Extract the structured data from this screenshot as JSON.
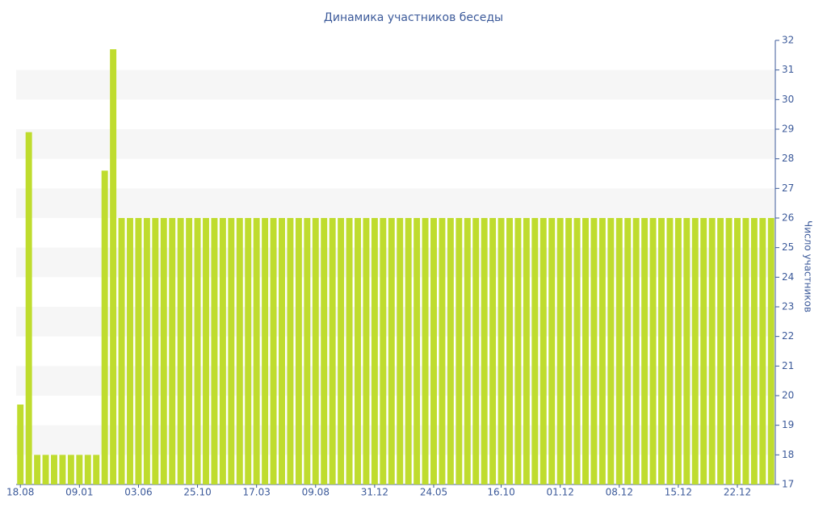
{
  "chart_data": {
    "type": "bar",
    "title": "Динамика участников беседы",
    "y_label": "Число участников",
    "categories": [
      "18.08",
      null,
      null,
      null,
      null,
      null,
      null,
      "09.01",
      null,
      null,
      null,
      null,
      null,
      null,
      "03.06",
      null,
      null,
      null,
      null,
      null,
      null,
      "25.10",
      null,
      null,
      null,
      null,
      null,
      null,
      "17.03",
      null,
      null,
      null,
      null,
      null,
      null,
      "09.08",
      null,
      null,
      null,
      null,
      null,
      null,
      "31.12",
      null,
      null,
      null,
      null,
      null,
      null,
      "24.05",
      null,
      null,
      null,
      null,
      null,
      null,
      null,
      "16.10",
      null,
      null,
      null,
      null,
      null,
      null,
      "01.12",
      null,
      null,
      null,
      null,
      null,
      null,
      "08.12",
      null,
      null,
      null,
      null,
      null,
      null,
      "15.12",
      null,
      null,
      null,
      null,
      null,
      null,
      "22.12",
      null,
      null,
      null,
      null
    ],
    "values": [
      19.7,
      28.9,
      18,
      18,
      18,
      18,
      18,
      18,
      18,
      18,
      27.6,
      31.7,
      26,
      26,
      26,
      26,
      26,
      26,
      26,
      26,
      26,
      26,
      26,
      26,
      26,
      26,
      26,
      26,
      26,
      26,
      26,
      26,
      26,
      26,
      26,
      26,
      26,
      26,
      26,
      26,
      26,
      26,
      26,
      26,
      26,
      26,
      26,
      26,
      26,
      26,
      26,
      26,
      26,
      26,
      26,
      26,
      26,
      26,
      26,
      26,
      26,
      26,
      26,
      26,
      26,
      26,
      26,
      26,
      26,
      26,
      26,
      26,
      26,
      26,
      26,
      26,
      26,
      26,
      26,
      26,
      26,
      26,
      26,
      26,
      26,
      26,
      26,
      26,
      26,
      26
    ],
    "color": "#bfdc2e",
    "ylim": [
      17,
      32
    ],
    "yticks": [
      17,
      18,
      19,
      20,
      21,
      22,
      23,
      24,
      25,
      26,
      27,
      28,
      29,
      30,
      31,
      32
    ],
    "grid": true,
    "y_axis_side": "right"
  }
}
